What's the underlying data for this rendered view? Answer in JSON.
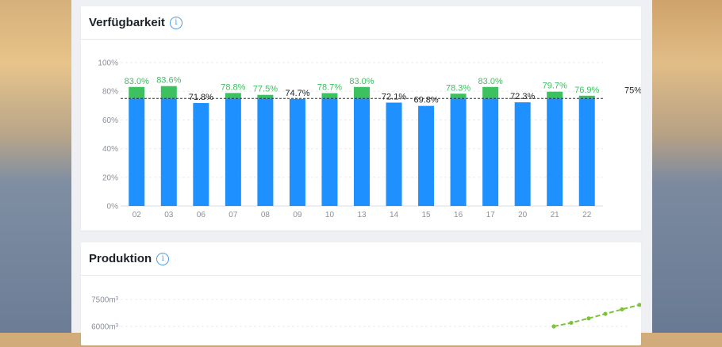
{
  "availability": {
    "title": "Verfügbarkeit",
    "info_icon": "i",
    "chart_data": {
      "type": "bar",
      "categories": [
        "02",
        "03",
        "06",
        "07",
        "08",
        "09",
        "10",
        "13",
        "14",
        "15",
        "16",
        "17",
        "20",
        "21",
        "22"
      ],
      "values": [
        83.0,
        83.6,
        71.8,
        78.8,
        77.5,
        74.7,
        78.7,
        83.0,
        72.1,
        69.8,
        78.3,
        83.0,
        72.3,
        79.7,
        76.9
      ],
      "value_labels": [
        "83.0%",
        "83.6%",
        "71.8%",
        "78.8%",
        "77.5%",
        "74.7%",
        "78.7%",
        "83.0%",
        "72.1%",
        "69.8%",
        "78.3%",
        "83.0%",
        "72.3%",
        "79.7%",
        "76.9%"
      ],
      "threshold": 75,
      "threshold_label": "75%",
      "y_ticks": [
        0,
        20,
        40,
        60,
        80,
        100
      ],
      "y_tick_labels": [
        "0%",
        "20%",
        "40%",
        "60%",
        "80%",
        "100%"
      ],
      "ylim": [
        0,
        100
      ],
      "title": "",
      "xlabel": "",
      "ylabel": "",
      "grid": true,
      "colors": {
        "bar": "#1e90ff",
        "above": "#3cc060",
        "label_above": "#3cc060",
        "label_below": "#1f2329",
        "threshold": "#333333"
      }
    }
  },
  "production": {
    "title": "Produktion",
    "info_icon": "i",
    "chart_data": {
      "type": "line",
      "y_ticks": [
        6000,
        7500
      ],
      "y_tick_labels": [
        "6000m³",
        "7500m³"
      ],
      "visible_points": [
        6000,
        6200,
        6450,
        6700,
        6950,
        7200
      ],
      "title": "",
      "xlabel": "",
      "ylabel": "",
      "grid": true,
      "colors": {
        "line": "#7dc43a"
      }
    }
  }
}
